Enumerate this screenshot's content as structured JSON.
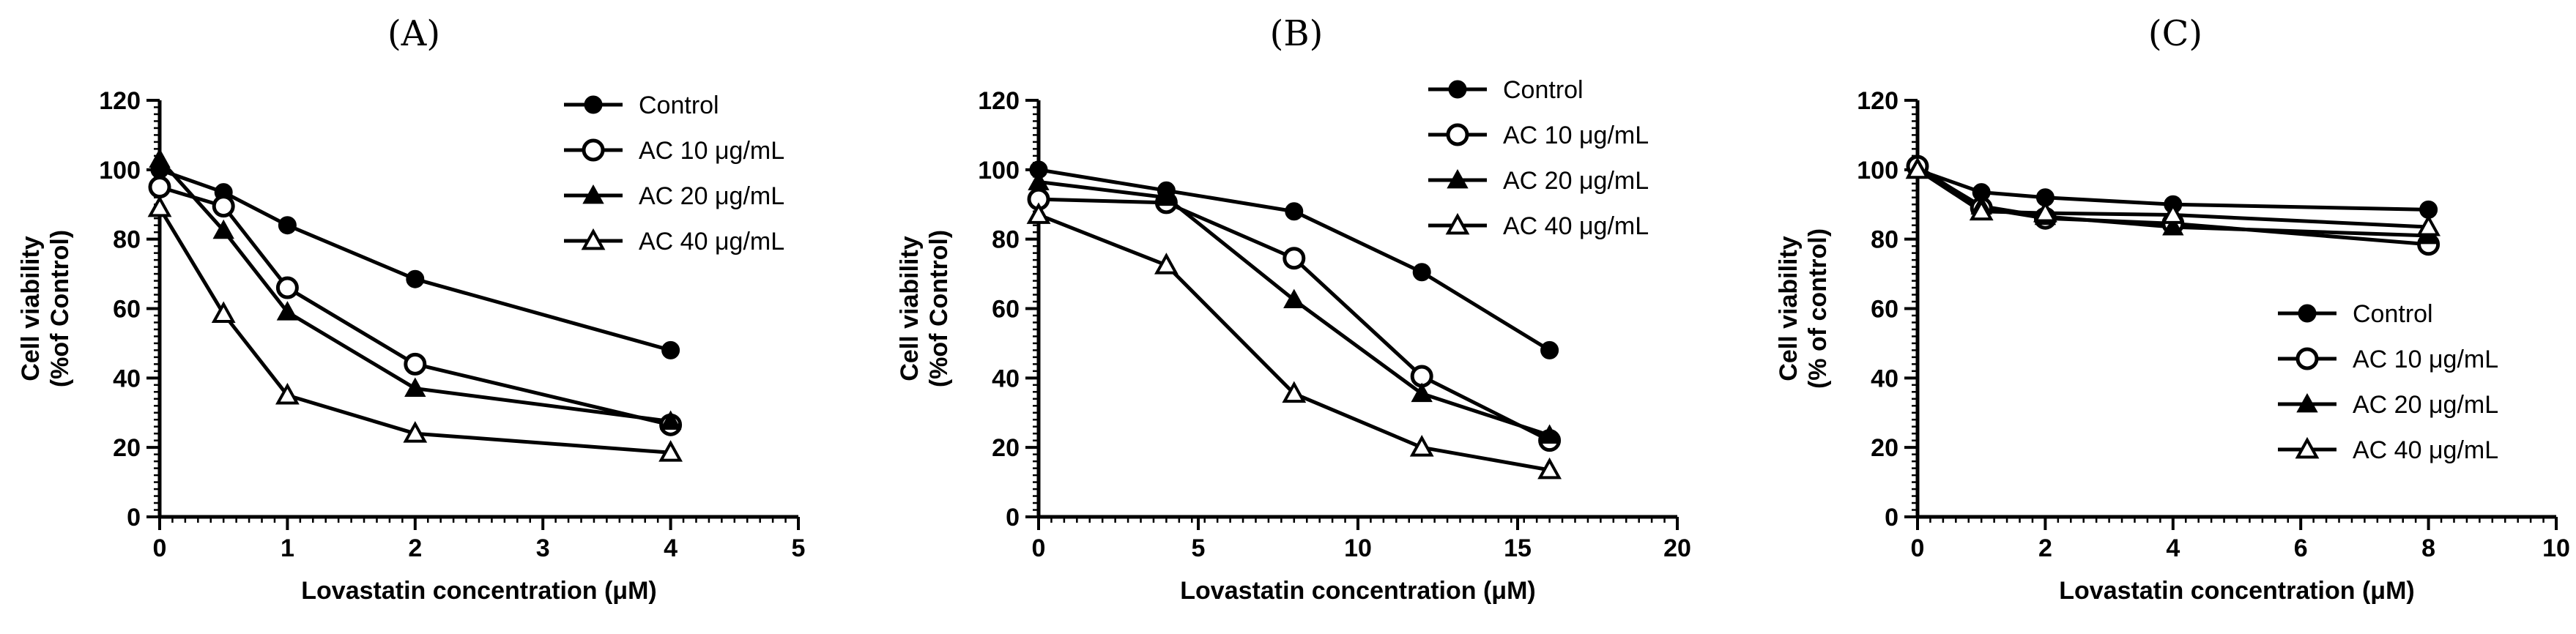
{
  "chart_data": [
    {
      "type": "line",
      "panel_label": "(A)",
      "xlabel": "Lovastatin concentration (μM)",
      "ylabel_line1": "Cell viability",
      "ylabel_line2": "(%of Control)",
      "xlim": [
        0,
        5
      ],
      "ylim": [
        0,
        120
      ],
      "xticks": [
        0,
        1,
        2,
        3,
        4,
        5
      ],
      "yticks": [
        0,
        20,
        40,
        60,
        80,
        100,
        120
      ],
      "x": [
        0,
        0.5,
        1,
        2,
        4
      ],
      "legend_position": "top-right",
      "series": [
        {
          "name": "Control",
          "marker": "filled-circle",
          "values": [
            100,
            93.5,
            84,
            68.5,
            48
          ]
        },
        {
          "name": "AC 10 μg/mL",
          "marker": "open-circle",
          "values": [
            95,
            89.5,
            66,
            44,
            26.5
          ]
        },
        {
          "name": "AC 20 μg/mL",
          "marker": "filled-triangle",
          "values": [
            103,
            82.5,
            59,
            37,
            27.5
          ]
        },
        {
          "name": "AC 40 μg/mL",
          "marker": "open-triangle",
          "values": [
            89,
            58.5,
            35,
            24,
            18.5
          ]
        }
      ]
    },
    {
      "type": "line",
      "panel_label": "(B)",
      "xlabel": "Lovastatin concentration (μM)",
      "ylabel_line1": "Cell viability",
      "ylabel_line2": "(%of Control)",
      "xlim": [
        0,
        20
      ],
      "ylim": [
        0,
        120
      ],
      "xticks": [
        0,
        5,
        10,
        15,
        20
      ],
      "yticks": [
        0,
        20,
        40,
        60,
        80,
        100,
        120
      ],
      "x": [
        0,
        4,
        8,
        12,
        16
      ],
      "legend_position": "top-right",
      "series": [
        {
          "name": "Control",
          "marker": "filled-circle",
          "values": [
            100,
            94,
            88,
            70.5,
            48
          ]
        },
        {
          "name": "AC 10 μg/mL",
          "marker": "open-circle",
          "values": [
            91.5,
            90.5,
            74.5,
            40.5,
            22
          ]
        },
        {
          "name": "AC 20 μg/mL",
          "marker": "filled-triangle",
          "values": [
            96.5,
            92,
            62.5,
            35.5,
            23.5
          ]
        },
        {
          "name": "AC 40 μg/mL",
          "marker": "open-triangle",
          "values": [
            87,
            72.5,
            35.5,
            20,
            13.5
          ]
        }
      ]
    },
    {
      "type": "line",
      "panel_label": "(C)",
      "xlabel": "Lovastatin concentration (μM)",
      "ylabel_line1": "Cell viability",
      "ylabel_line2": "(% of control)",
      "xlim": [
        0,
        10
      ],
      "ylim": [
        0,
        120
      ],
      "xticks": [
        0,
        2,
        4,
        6,
        8,
        10
      ],
      "yticks": [
        0,
        20,
        40,
        60,
        80,
        100,
        120
      ],
      "x": [
        0,
        1,
        2,
        4,
        8
      ],
      "legend_position": "bottom-right",
      "series": [
        {
          "name": "Control",
          "marker": "filled-circle",
          "values": [
            100,
            93.5,
            92,
            90,
            88.5
          ]
        },
        {
          "name": "AC 10 μg/mL",
          "marker": "open-circle",
          "values": [
            101,
            89,
            86,
            84.5,
            78.5
          ]
        },
        {
          "name": "AC 20 μg/mL",
          "marker": "filled-triangle",
          "values": [
            100.5,
            89.5,
            86.5,
            83.5,
            81
          ]
        },
        {
          "name": "AC 40 μg/mL",
          "marker": "open-triangle",
          "values": [
            100,
            88,
            87.5,
            87,
            83.5
          ]
        }
      ]
    }
  ]
}
